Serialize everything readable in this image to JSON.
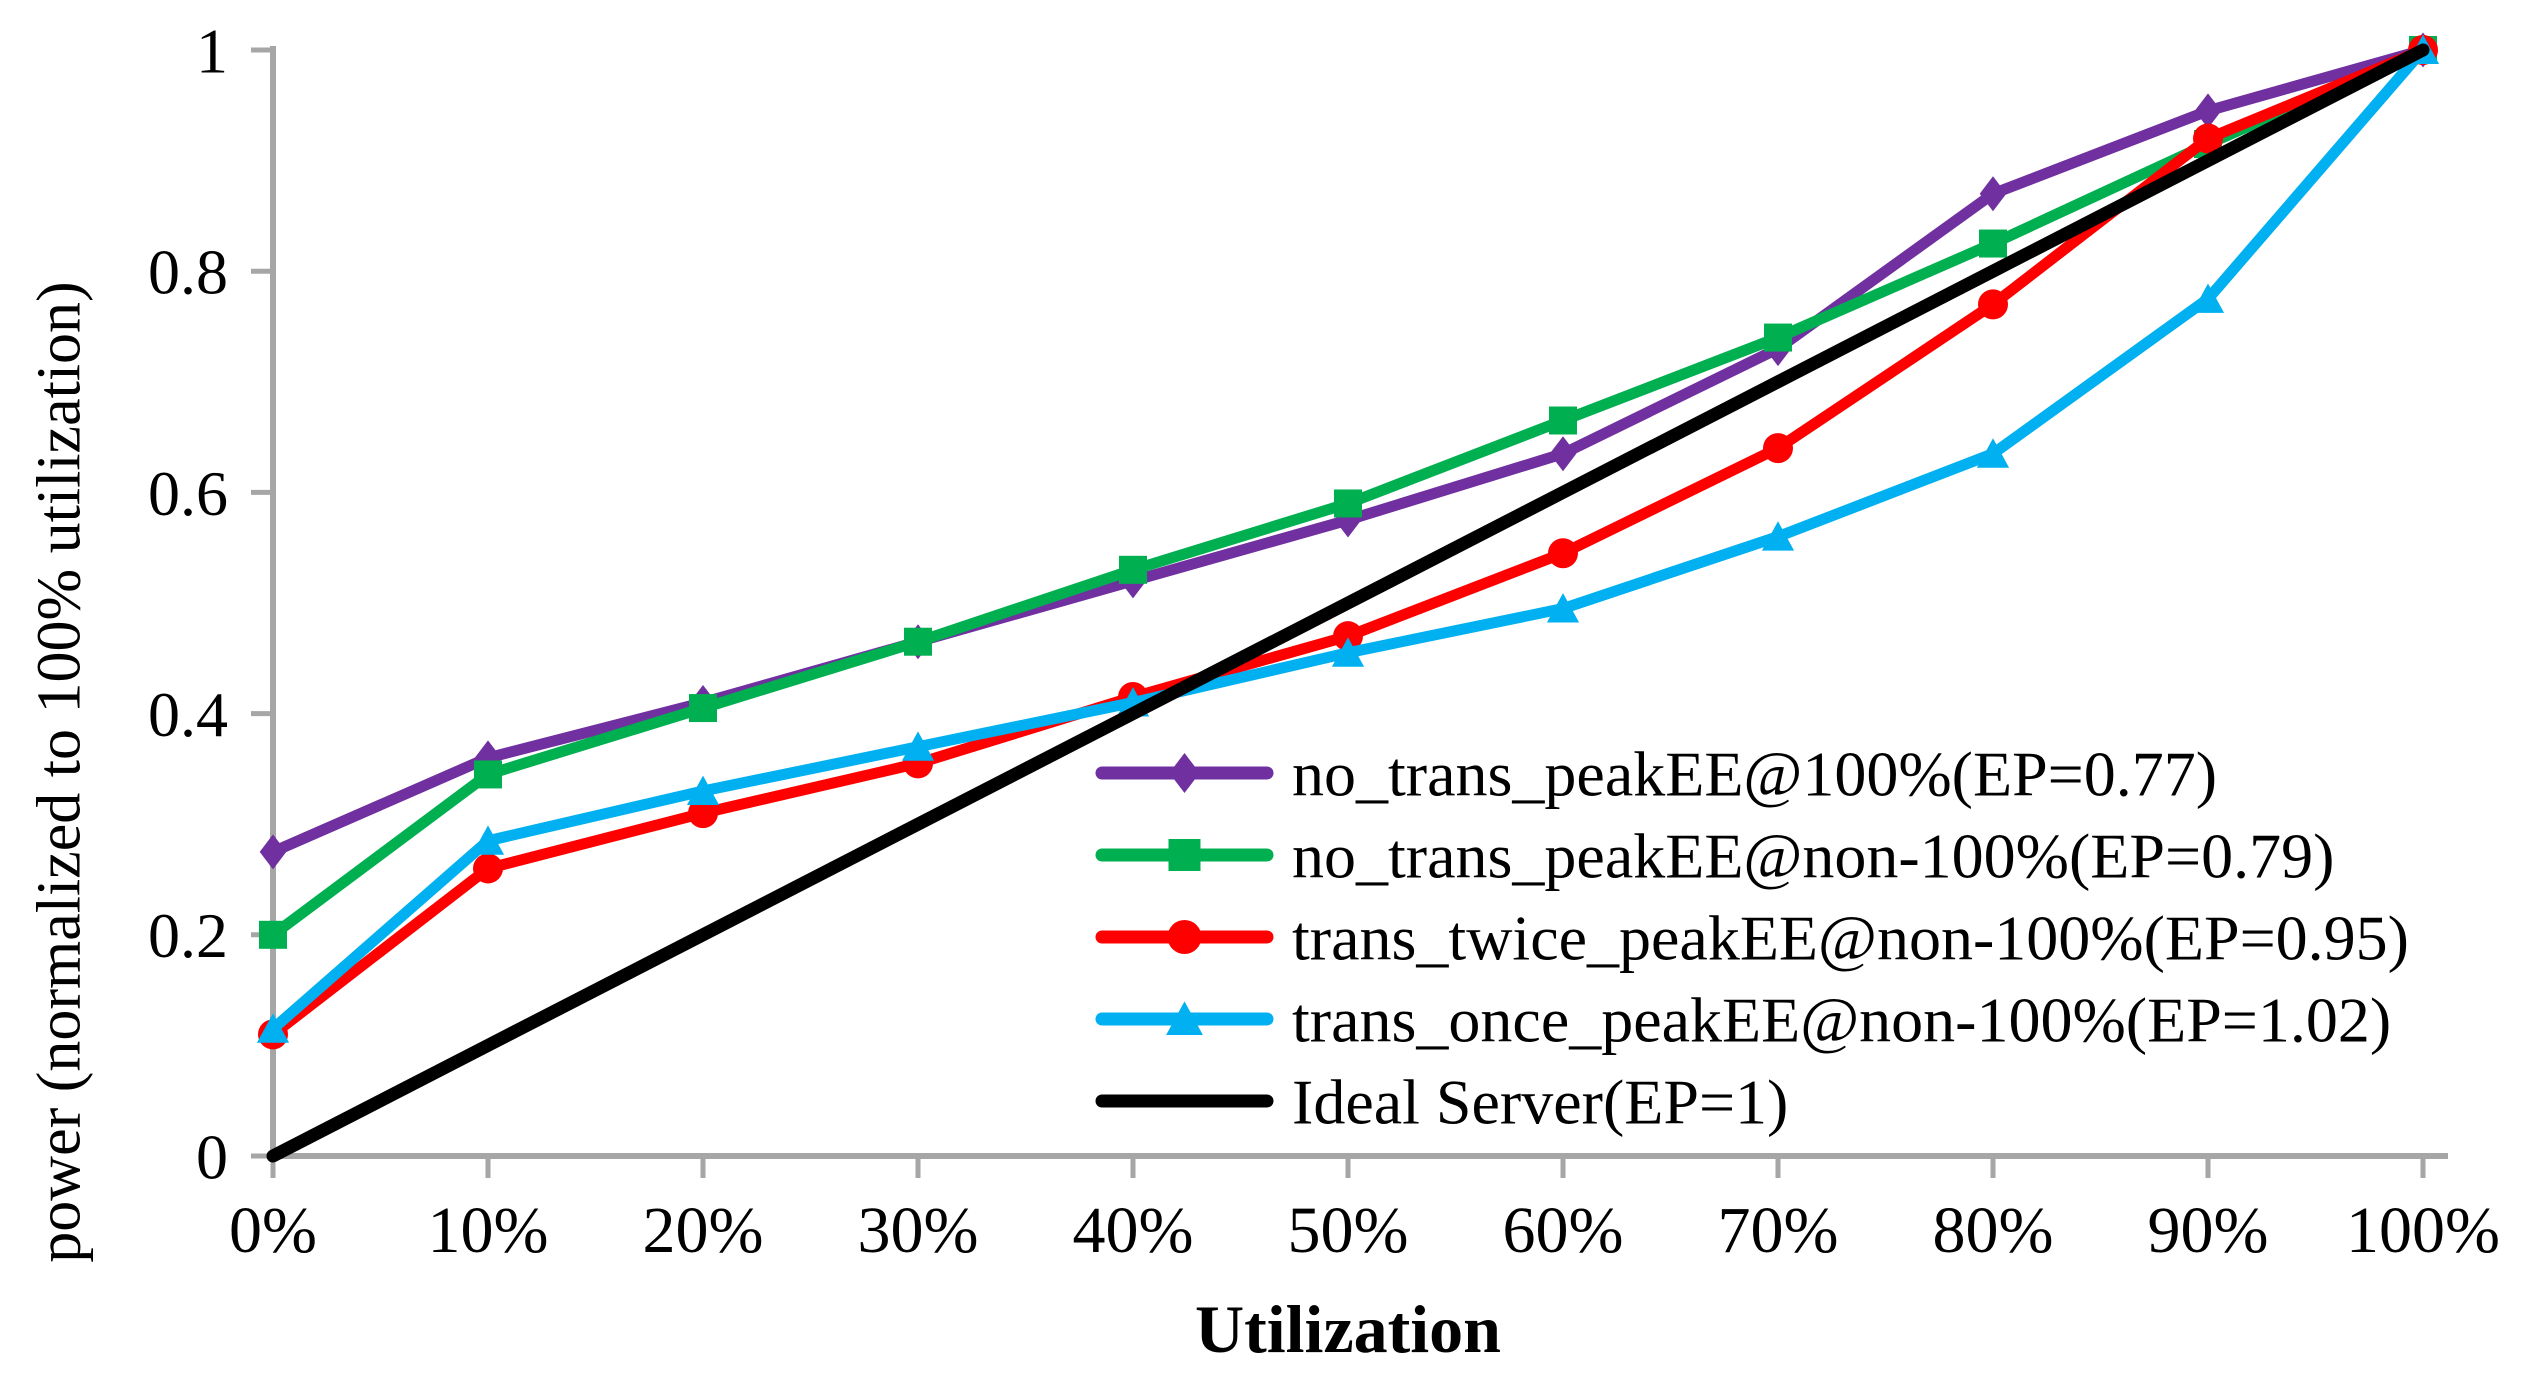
{
  "figure": {
    "background": "#FFFFFF",
    "axis_color": "#A6A6A6",
    "text_color": "#000000"
  },
  "chart_data": {
    "type": "line",
    "title": "",
    "xlabel": "Utilization",
    "ylabel": "power (normalized to 100% utilization)",
    "x_values_percent": [
      0,
      10,
      20,
      30,
      40,
      50,
      60,
      70,
      80,
      90,
      100
    ],
    "x_tick_labels": [
      "0%",
      "10%",
      "20%",
      "30%",
      "40%",
      "50%",
      "60%",
      "70%",
      "80%",
      "90%",
      "100%"
    ],
    "y_ticks": [
      0,
      0.2,
      0.4,
      0.6,
      0.8,
      1
    ],
    "y_tick_labels": [
      "0",
      "0.2",
      "0.4",
      "0.6",
      "0.8",
      "1"
    ],
    "xlim_percent": [
      0,
      100
    ],
    "ylim": [
      0,
      1
    ],
    "grid": false,
    "legend_position": "inside-right-middle",
    "series": [
      {
        "name": "no_trans_peakEE@100%(EP=0.77)",
        "color": "#7030A0",
        "marker": "diamond",
        "values": [
          0.275,
          0.36,
          0.41,
          0.465,
          0.52,
          0.575,
          0.635,
          0.73,
          0.87,
          0.945,
          1.0
        ]
      },
      {
        "name": "no_trans_peakEE@non-100%(EP=0.79)",
        "color": "#00B050",
        "marker": "square",
        "values": [
          0.2,
          0.345,
          0.405,
          0.465,
          0.53,
          0.59,
          0.665,
          0.74,
          0.825,
          0.915,
          1.0
        ]
      },
      {
        "name": "trans_twice_peakEE@non-100%(EP=0.95)",
        "color": "#FF0000",
        "marker": "circle",
        "values": [
          0.11,
          0.26,
          0.31,
          0.355,
          0.415,
          0.47,
          0.545,
          0.64,
          0.77,
          0.92,
          1.0
        ]
      },
      {
        "name": "trans_once_peakEE@non-100%(EP=1.02)",
        "color": "#00B0F0",
        "marker": "triangle",
        "values": [
          0.115,
          0.285,
          0.33,
          0.37,
          0.41,
          0.455,
          0.495,
          0.56,
          0.635,
          0.775,
          1.0
        ]
      },
      {
        "name": "Ideal Server(EP=1)",
        "color": "#000000",
        "marker": "none",
        "values": [
          0.0,
          0.1,
          0.2,
          0.3,
          0.4,
          0.5,
          0.6,
          0.7,
          0.8,
          0.9,
          1.0
        ]
      }
    ]
  }
}
